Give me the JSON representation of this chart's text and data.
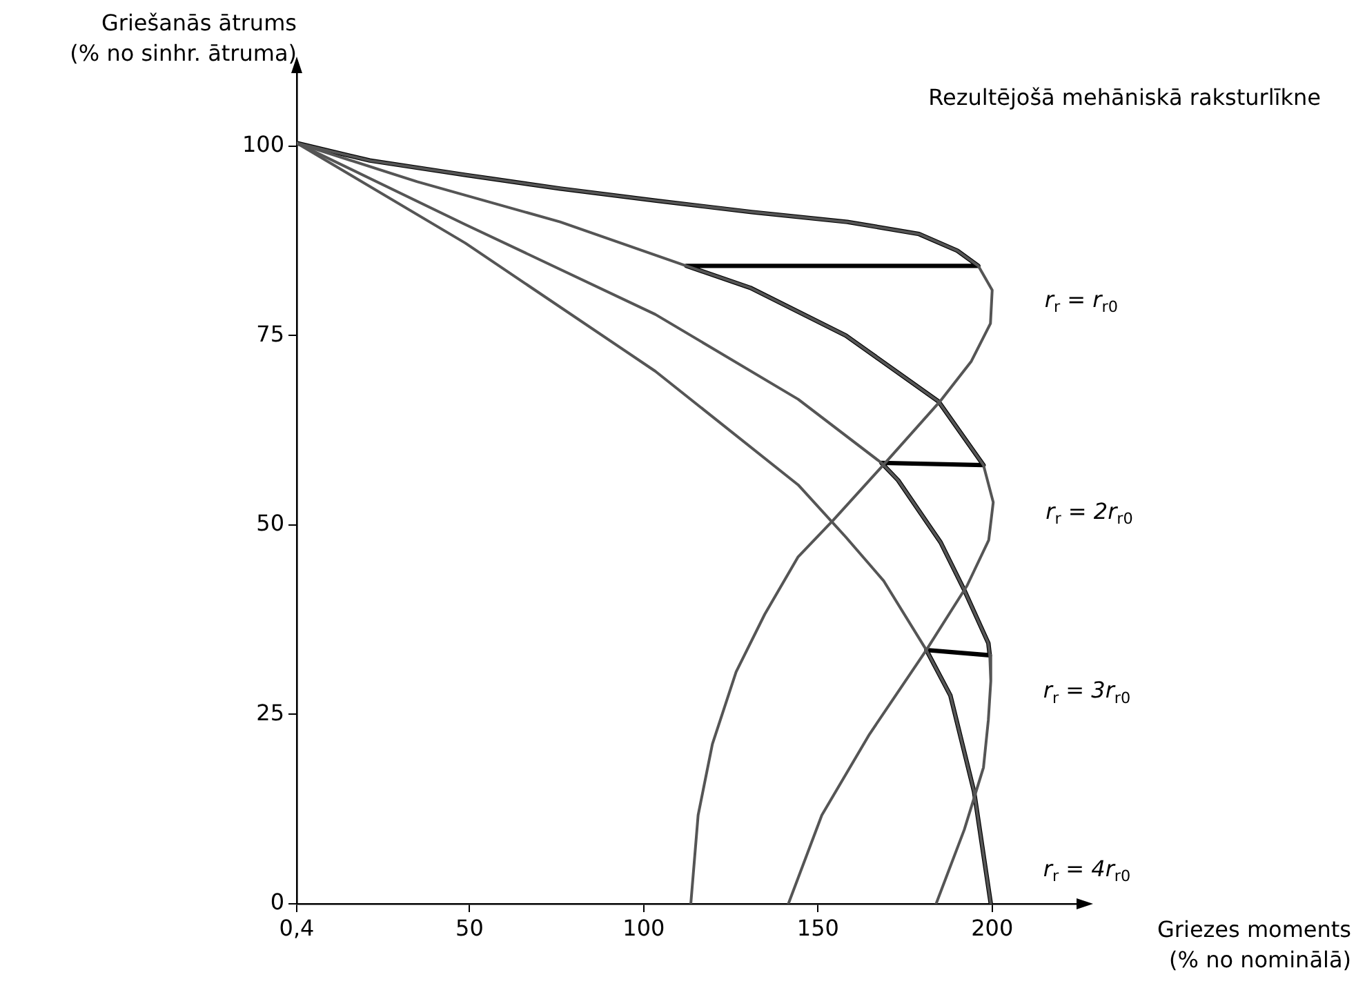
{
  "chart_data": {
    "type": "line",
    "xlabel": "Griezes moments\n(% no nominālā)",
    "ylabel": "Griešanās ātrums\n(% no sinhr. ātruma)",
    "xlim": [
      0.4,
      225
    ],
    "ylim": [
      0,
      110
    ],
    "xticks": [
      {
        "value": 0.4,
        "label": "0,4"
      },
      50,
      100,
      150,
      200
    ],
    "yticks": [
      0,
      25,
      50,
      75,
      100
    ],
    "grid": false,
    "legend": false,
    "marker": "none",
    "line_style": "solid",
    "series": [
      {
        "name": "r$_{r}$ = r$_{r0}$",
        "color": "#555555",
        "x": [
          0.4,
          21.4,
          48.8,
          76,
          103.6,
          131,
          158.4,
          179,
          190,
          196,
          200,
          199.5,
          194,
          185,
          169.3,
          154.3,
          144.3,
          134.7,
          126.5,
          119.7,
          115.6,
          113.5
        ],
        "values": [
          100.4,
          98.1,
          96.2,
          94.4,
          92.8,
          91.3,
          90,
          88.4,
          86.2,
          84.2,
          81,
          76.6,
          71.6,
          66.3,
          58.2,
          50.6,
          45.8,
          38.2,
          30.6,
          21.1,
          11.7,
          0
        ]
      },
      {
        "name": "r$_{r}$ = 2r$_{r0}$",
        "color": "#555555",
        "x": [
          0.4,
          35,
          76,
          112.2,
          130.6,
          158,
          184.6,
          197.5,
          200.3,
          199,
          192.8,
          181.1,
          164.8,
          151.1,
          141.5
        ],
        "values": [
          100.4,
          95.3,
          90,
          84.2,
          81.3,
          75,
          66.3,
          57.9,
          53,
          48,
          42,
          33.5,
          22.4,
          11.7,
          0
        ]
      },
      {
        "name": "r$_{r}$ = 3r$_{r0}$",
        "color": "#555555",
        "x": [
          0.4,
          48.6,
          103.3,
          144.3,
          168.2,
          173,
          185.2,
          192,
          198.9,
          199.3,
          199.6,
          198.9,
          197.5,
          192,
          183.9
        ],
        "values": [
          100.4,
          89.7,
          77.8,
          66.6,
          58.2,
          55.9,
          47.7,
          41.4,
          34.4,
          32.8,
          29.4,
          24.3,
          18,
          9.8,
          0
        ]
      },
      {
        "name": "r$_{r}$ = 4r$_{r0}$",
        "color": "#555555",
        "x": [
          0.4,
          48.8,
          103.3,
          144.3,
          158,
          168.9,
          181.1,
          188,
          194.8,
          199.6
        ],
        "values": [
          100.4,
          87.2,
          70.3,
          55.3,
          48.4,
          42.6,
          33.5,
          27.5,
          14.8,
          0
        ]
      },
      {
        "color": "#000000",
        "x": [
          0.4,
          21.4,
          48.8,
          76,
          103.6,
          131,
          158.4,
          179,
          190,
          196,
          112.2,
          130.6,
          158,
          184.6,
          197.5,
          168.2,
          173,
          185.2,
          192,
          198.9,
          199.3,
          181.1,
          188,
          194.8,
          199.6
        ],
        "values": [
          100.4,
          98.1,
          96.2,
          94.4,
          92.8,
          91.3,
          90,
          88.4,
          86.2,
          84.2,
          84.2,
          81.3,
          75,
          66.3,
          57.9,
          58.2,
          55.9,
          47.7,
          41.4,
          34.4,
          32.8,
          33.5,
          27.5,
          14.8,
          0
        ]
      }
    ],
    "annotations": [
      "Rezultējošā mehāniskā raksturlīkne"
    ]
  }
}
